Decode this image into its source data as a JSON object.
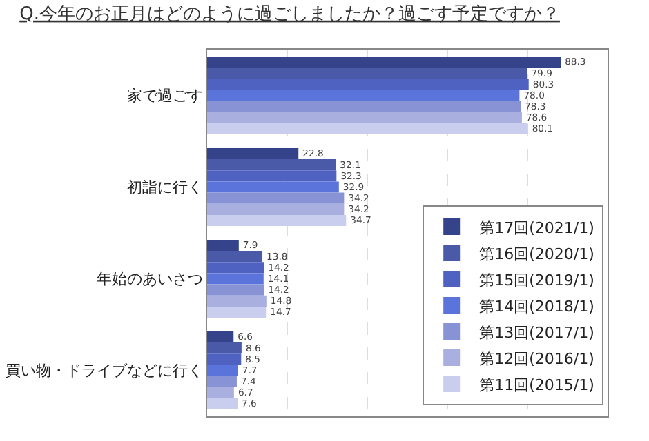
{
  "chart_data": {
    "type": "bar",
    "orientation": "horizontal",
    "title": "Q.今年のお正月はどのように過ごしましたか？過ごす予定ですか？",
    "categories": [
      "家で過ごす",
      "初詣に行く",
      "年始のあいさつ",
      "買い物・ドライブなどに行く"
    ],
    "series": [
      {
        "name": "第17回(2021/1)",
        "color": "#34438a",
        "values": [
          88.3,
          22.8,
          7.9,
          6.6
        ],
        "value_labels": [
          "88.3",
          "22.8",
          "7.9",
          "6.6"
        ]
      },
      {
        "name": "第16回(2020/1)",
        "color": "#4b5aa8",
        "values": [
          79.9,
          32.1,
          13.8,
          8.6
        ],
        "value_labels": [
          "79.9",
          "32.1",
          "13.8",
          "8.6"
        ]
      },
      {
        "name": "第15回(2019/1)",
        "color": "#4f62c2",
        "values": [
          80.3,
          32.3,
          14.2,
          8.5
        ],
        "value_labels": [
          "80.3",
          "32.3",
          "14.2",
          "8.5"
        ]
      },
      {
        "name": "第14回(2018/1)",
        "color": "#5b74dc",
        "values": [
          78.0,
          32.9,
          14.1,
          7.7
        ],
        "value_labels": [
          "78.0",
          "32.9",
          "14.1",
          "7.7"
        ]
      },
      {
        "name": "第13回(2017/1)",
        "color": "#8893d6",
        "values": [
          78.3,
          34.2,
          14.2,
          7.4
        ],
        "value_labels": [
          "78.3",
          "34.2",
          "14.2",
          "7.4"
        ]
      },
      {
        "name": "第12回(2016/1)",
        "color": "#a9b0e0",
        "values": [
          78.6,
          34.2,
          14.8,
          6.7
        ],
        "value_labels": [
          "78.6",
          "34.2",
          "14.8",
          "6.7"
        ]
      },
      {
        "name": "第11回(2015/1)",
        "color": "#c9cdee",
        "values": [
          80.1,
          34.7,
          14.7,
          7.6
        ],
        "value_labels": [
          "80.1",
          "34.7",
          "14.7",
          "7.6"
        ]
      }
    ],
    "xlim": [
      0,
      100
    ],
    "xticks": [
      {
        "value": 0,
        "label": null
      },
      {
        "value": 20,
        "label": null
      },
      {
        "value": 40,
        "label": null
      },
      {
        "value": 60,
        "label": null
      },
      {
        "value": 80,
        "label": null
      },
      {
        "value": 100,
        "label": null
      }
    ],
    "grid": "x",
    "tick_labels": "y",
    "legend": "bottom right"
  }
}
